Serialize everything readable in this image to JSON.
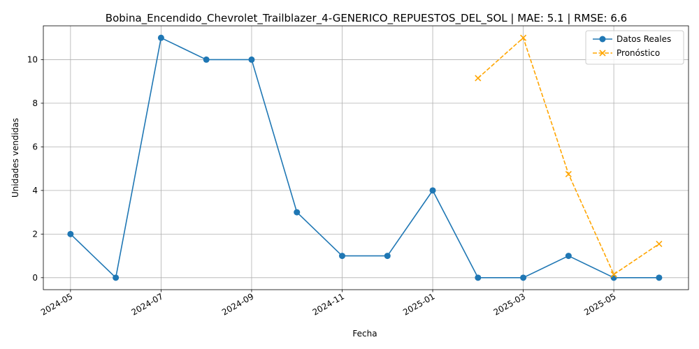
{
  "chart_data": {
    "type": "line",
    "title": "Bobina_Encendido_Chevrolet_Trailblazer_4-GENERICO_REPUESTOS_DEL_SOL | MAE: 5.1 | RMSE: 6.6",
    "xlabel": "Fecha",
    "ylabel": "Unidades vendidas",
    "ylim": [
      -0.55,
      11.55
    ],
    "xlim": [
      -0.6,
      13.65
    ],
    "yticks": [
      0,
      2,
      4,
      6,
      8,
      10
    ],
    "xticks": [
      {
        "pos": 0,
        "label": "2024-05"
      },
      {
        "pos": 2,
        "label": "2024-07"
      },
      {
        "pos": 4,
        "label": "2024-09"
      },
      {
        "pos": 6,
        "label": "2024-11"
      },
      {
        "pos": 8,
        "label": "2025-01"
      },
      {
        "pos": 10,
        "label": "2025-03"
      },
      {
        "pos": 12,
        "label": "2025-05"
      }
    ],
    "grid": true,
    "legend_position": "top-right",
    "series": [
      {
        "name": "Datos Reales",
        "color": "#1f77b4",
        "style": "solid",
        "marker": "circle",
        "x": [
          0,
          1,
          2,
          3,
          4,
          5,
          6,
          7,
          8,
          9,
          10,
          11,
          12,
          13
        ],
        "values": [
          2,
          0,
          11,
          10,
          10,
          3,
          1,
          1,
          4,
          0,
          0,
          1,
          0,
          0
        ]
      },
      {
        "name": "Pronóstico",
        "color": "#ffa500",
        "style": "dashed",
        "marker": "x",
        "x": [
          9,
          10,
          11,
          12,
          13
        ],
        "values": [
          9.15,
          11.0,
          4.75,
          0.15,
          1.55
        ]
      }
    ]
  }
}
